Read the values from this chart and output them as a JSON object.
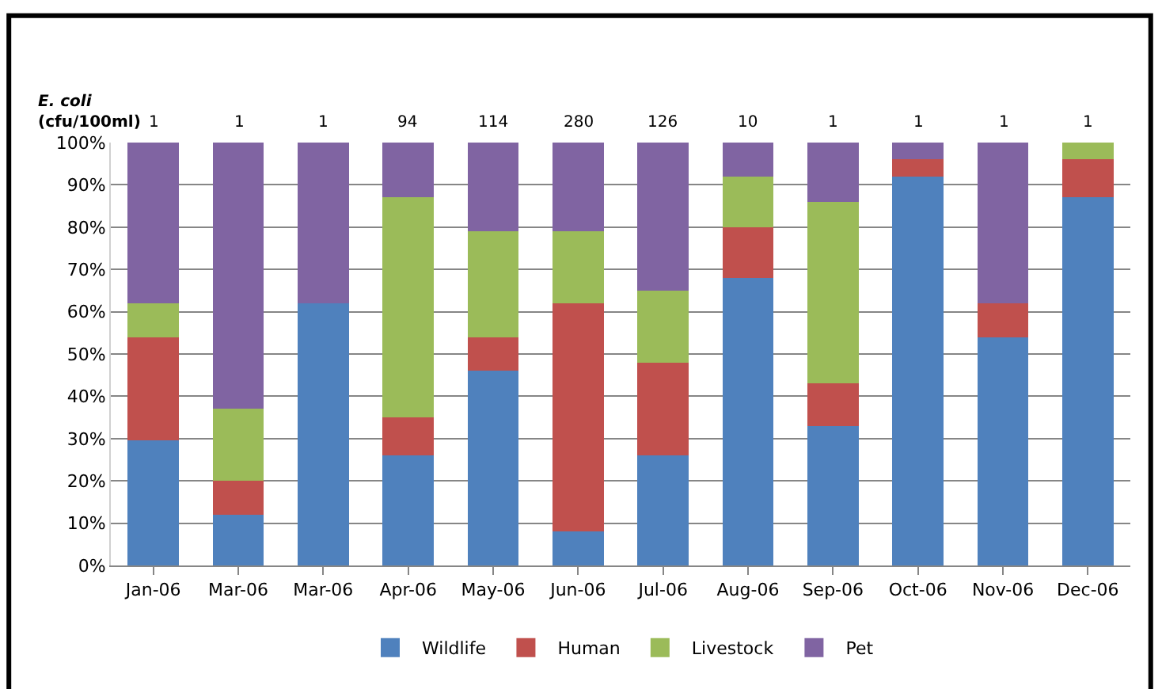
{
  "chart_data": {
    "type": "bar",
    "stacked": true,
    "categories": [
      "Jan-06",
      "Mar-06",
      "Mar-06",
      "Apr-06",
      "May-06",
      "Jun-06",
      "Jul-06",
      "Aug-06",
      "Sep-06",
      "Oct-06",
      "Nov-06",
      "Dec-06"
    ],
    "series": [
      {
        "name": "Wildlife",
        "color": "#4f81bd",
        "values": [
          29.5,
          12,
          62,
          26,
          46,
          8,
          26,
          68,
          33,
          92,
          54,
          87
        ]
      },
      {
        "name": "Human",
        "color": "#c0504d",
        "values": [
          24.5,
          8,
          0,
          9,
          8,
          54,
          22,
          12,
          10,
          4,
          8,
          9
        ]
      },
      {
        "name": "Livestock",
        "color": "#9bbb59",
        "values": [
          8,
          17,
          0,
          52,
          25,
          17,
          17,
          12,
          43,
          0,
          0,
          4
        ]
      },
      {
        "name": "Pet",
        "color": "#8064a2",
        "values": [
          38,
          63,
          38,
          13,
          21,
          21,
          35,
          8,
          14,
          4,
          38,
          0
        ]
      }
    ],
    "ylim": [
      0,
      100
    ],
    "yticks": [
      {
        "value": 0,
        "label": "0%"
      },
      {
        "value": 10,
        "label": "10%"
      },
      {
        "value": 20,
        "label": "20%"
      },
      {
        "value": 30,
        "label": "30%"
      },
      {
        "value": 40,
        "label": "40%"
      },
      {
        "value": 50,
        "label": "50%"
      },
      {
        "value": 60,
        "label": "60%"
      },
      {
        "value": 70,
        "label": "70%"
      },
      {
        "value": 80,
        "label": "80%"
      },
      {
        "value": 90,
        "label": "90%"
      },
      {
        "value": 100,
        "label": "100%"
      }
    ],
    "annotations": [
      "E. coli\n(cfu/100ml)",
      "1",
      "1",
      "1",
      "94",
      "114",
      "280",
      "126",
      "10",
      "1",
      "1",
      "1",
      "1"
    ],
    "grid": "y",
    "legend": "bottom"
  }
}
